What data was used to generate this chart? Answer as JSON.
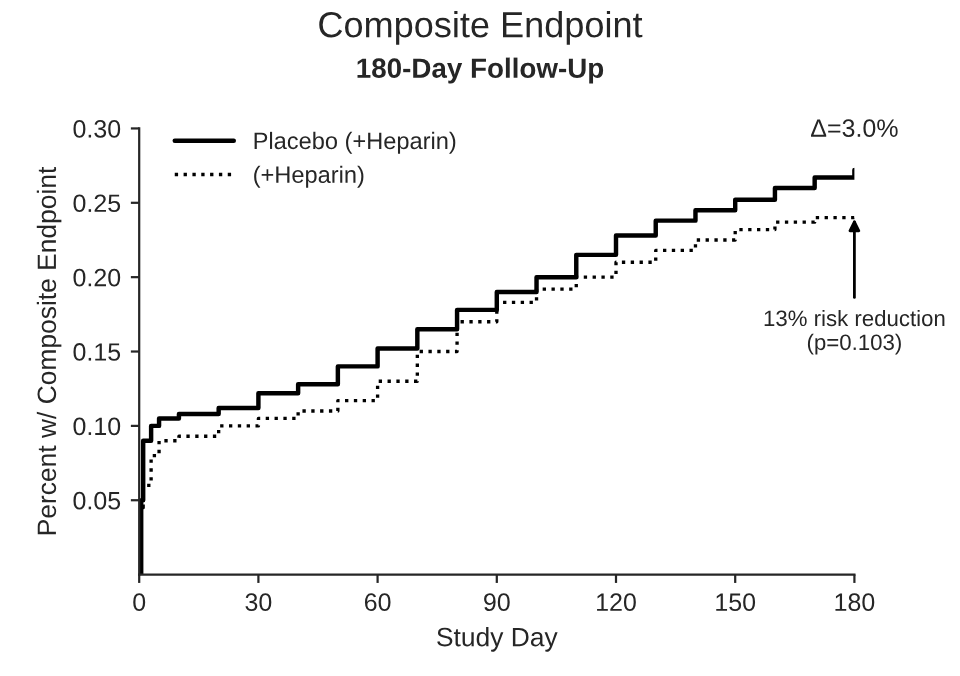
{
  "chart_data": {
    "type": "step",
    "title": "Composite Endpoint",
    "subtitle": "180-Day Follow-Up",
    "xlabel": "Study Day",
    "ylabel": "Percent w/ Composite Endpoint",
    "x": [
      0,
      0.5,
      1,
      3,
      5,
      10,
      20,
      30,
      40,
      50,
      60,
      70,
      80,
      90,
      100,
      110,
      120,
      130,
      140,
      150,
      160,
      170,
      180
    ],
    "series": [
      {
        "name": "Placebo (+Heparin)",
        "color": "#000000",
        "line_style": "solid",
        "values": [
          0.0,
          0.05,
          0.09,
          0.1,
          0.105,
          0.108,
          0.112,
          0.122,
          0.128,
          0.14,
          0.152,
          0.165,
          0.178,
          0.19,
          0.2,
          0.215,
          0.228,
          0.238,
          0.245,
          0.252,
          0.26,
          0.267,
          0.272
        ]
      },
      {
        "name": "(+Heparin)",
        "color": "#000000",
        "line_style": "dotted",
        "values": [
          0.0,
          0.045,
          0.06,
          0.08,
          0.09,
          0.093,
          0.1,
          0.105,
          0.11,
          0.117,
          0.13,
          0.15,
          0.17,
          0.183,
          0.192,
          0.2,
          0.21,
          0.218,
          0.225,
          0.232,
          0.237,
          0.24,
          0.243
        ]
      }
    ],
    "xlim": [
      0,
      180
    ],
    "xticks": [
      0,
      30,
      60,
      90,
      120,
      150,
      180
    ],
    "ylim": [
      0,
      0.3
    ],
    "yticks": [
      0.05,
      {
        "value": 0.1,
        "label": "0.10"
      },
      0.15,
      {
        "value": 0.2,
        "label": "0.20"
      },
      0.25,
      {
        "value": 0.3,
        "label": "0.30"
      }
    ],
    "annotations": [
      {
        "text": "Δ=3.0%",
        "x": 180,
        "y": 0.272
      },
      {
        "text": "13% risk reduction\n(p=0.103)",
        "x": 180,
        "y": 0.243
      }
    ],
    "legend": "top left",
    "grid": false
  }
}
